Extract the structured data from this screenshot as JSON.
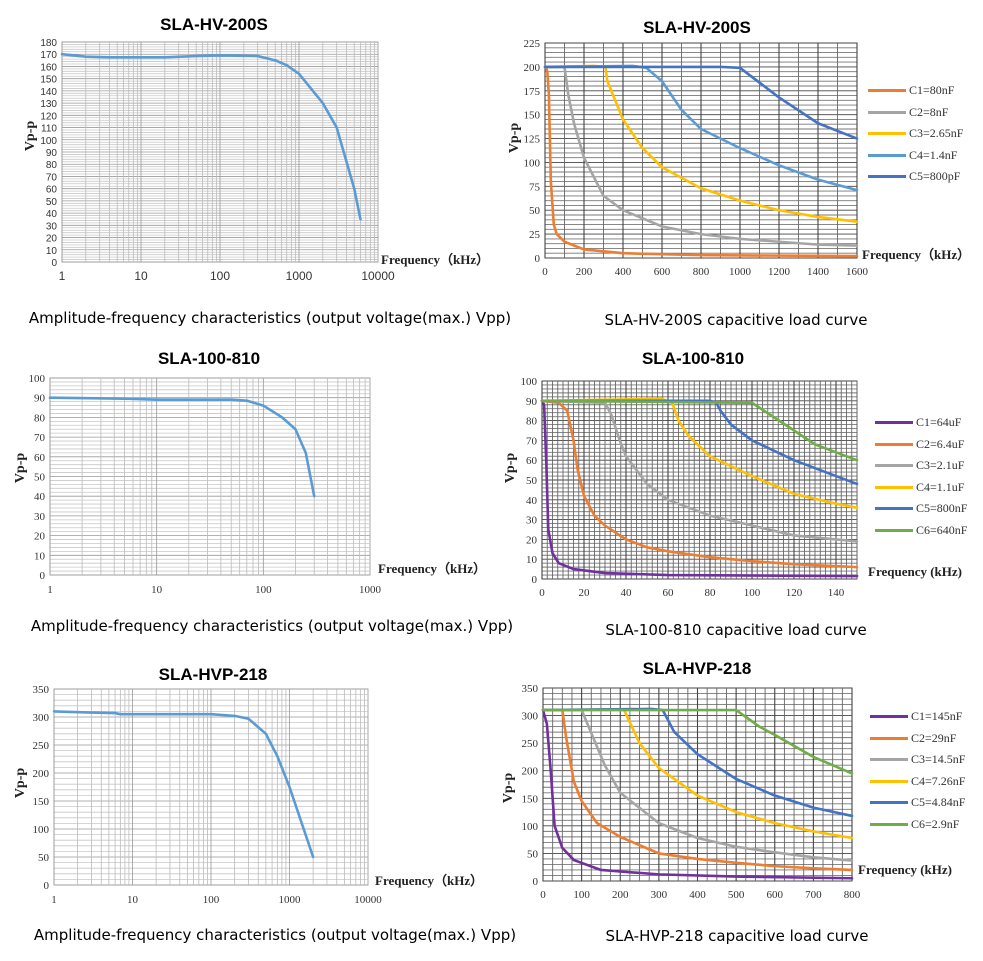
{
  "chart_data": [
    {
      "type": "line",
      "title": "SLA-HV-200S",
      "caption": "Amplitude-frequency characteristics (output voltage(max.) Vpp)",
      "xlabel": "Frequency（kHz）",
      "ylabel": "Vp-p",
      "xscale": "log",
      "xlim": [
        1,
        10000
      ],
      "ylim": [
        0,
        180
      ],
      "xticks": [
        "1",
        "10",
        "100",
        "1000",
        "10000"
      ],
      "yticks": [
        "0",
        "10",
        "20",
        "30",
        "40",
        "50",
        "60",
        "70",
        "80",
        "90",
        "100",
        "110",
        "120",
        "130",
        "140",
        "150",
        "160",
        "170",
        "180"
      ],
      "grid": true,
      "series": [
        {
          "color": "#5b9bd5",
          "x": [
            1,
            2,
            4,
            10,
            20,
            50,
            100,
            300,
            500,
            700,
            1000,
            2000,
            3000,
            5000,
            6000
          ],
          "y": [
            170,
            168,
            167.5,
            167.5,
            167.5,
            168.5,
            169,
            168.5,
            165,
            161,
            154,
            130,
            110,
            60,
            35
          ]
        }
      ]
    },
    {
      "type": "line",
      "title": "SLA-HV-200S",
      "caption": "SLA-HV-200S capacitive load curve",
      "xlabel": "Frequency（kHz）",
      "ylabel": "Vp-p",
      "xscale": "linear",
      "xlim": [
        0,
        1600
      ],
      "ylim": [
        0,
        225
      ],
      "xticks": [
        "0",
        "200",
        "400",
        "600",
        "800",
        "1000",
        "1200",
        "1400",
        "1600"
      ],
      "yticks": [
        "0",
        "25",
        "50",
        "75",
        "100",
        "125",
        "150",
        "175",
        "200",
        "225"
      ],
      "grid": true,
      "legend": "right",
      "series": [
        {
          "name": "C1=80nF",
          "color": "#ed7d31",
          "x": [
            5,
            12,
            20,
            30,
            45,
            60,
            100,
            200,
            400,
            800,
            1600
          ],
          "y": [
            200,
            195,
            170,
            80,
            35,
            25,
            17,
            9,
            5,
            3,
            2
          ]
        },
        {
          "name": "C2=8nF",
          "color": "#a5a5a5",
          "x": [
            0,
            100,
            120,
            150,
            200,
            300,
            400,
            600,
            800,
            1000,
            1200,
            1400,
            1600
          ],
          "y": [
            200,
            200,
            170,
            140,
            105,
            65,
            50,
            33,
            25,
            20,
            17,
            14,
            13
          ]
        },
        {
          "name": "C3=2.65nF",
          "color": "#ffc000",
          "x": [
            0,
            250,
            310,
            320,
            400,
            500,
            600,
            800,
            1000,
            1200,
            1400,
            1600
          ],
          "y": [
            200,
            201,
            200,
            185,
            145,
            115,
            95,
            73,
            60,
            50,
            43,
            38
          ]
        },
        {
          "name": "C4=1.4nF",
          "color": "#5b9bd5",
          "x": [
            0,
            450,
            520,
            600,
            700,
            800,
            1000,
            1200,
            1400,
            1600
          ],
          "y": [
            200,
            201,
            199,
            185,
            155,
            135,
            115,
            97,
            82,
            71
          ]
        },
        {
          "name": "C5=800pF",
          "color": "#4472c4",
          "x": [
            0,
            900,
            1000,
            1200,
            1400,
            1600
          ],
          "y": [
            200,
            200,
            199,
            168,
            141,
            125
          ]
        }
      ]
    },
    {
      "type": "line",
      "title": "SLA-100-810",
      "caption": "Amplitude-frequency characteristics (output voltage(max.) Vpp)",
      "xlabel": "Frequency（kHz）",
      "ylabel": "Vp-p",
      "xscale": "log",
      "xlim": [
        1,
        1000
      ],
      "ylim": [
        0,
        100
      ],
      "xticks": [
        "1",
        "10",
        "100",
        "1000"
      ],
      "yticks": [
        "0",
        "10",
        "20",
        "30",
        "40",
        "50",
        "60",
        "70",
        "80",
        "90",
        "100"
      ],
      "grid": true,
      "series": [
        {
          "color": "#5b9bd5",
          "x": [
            1,
            5,
            10,
            50,
            70,
            100,
            150,
            200,
            250,
            300
          ],
          "y": [
            90,
            89.5,
            89,
            89,
            88.5,
            86,
            80,
            74,
            62,
            40
          ]
        }
      ]
    },
    {
      "type": "line",
      "title": "SLA-100-810",
      "caption": "SLA-100-810 capacitive load curve",
      "xlabel": "Frequency (kHz)",
      "ylabel": "Vp-p",
      "xscale": "linear",
      "xlim": [
        0,
        150
      ],
      "ylim": [
        0,
        100
      ],
      "xticks": [
        "0",
        "20",
        "40",
        "60",
        "80",
        "100",
        "120",
        "140"
      ],
      "yticks": [
        "0",
        "10",
        "20",
        "30",
        "40",
        "50",
        "60",
        "70",
        "80",
        "90",
        "100"
      ],
      "grid": true,
      "legend": "right",
      "series": [
        {
          "name": "C1=64uF",
          "color": "#7030a0",
          "x": [
            0,
            1,
            2,
            3,
            5,
            8,
            15,
            30,
            60,
            150
          ],
          "y": [
            90,
            88,
            60,
            25,
            13,
            8,
            5,
            3,
            2,
            1.5
          ]
        },
        {
          "name": "C2=6.4uF",
          "color": "#ed7d31",
          "x": [
            0,
            8,
            12,
            15,
            17,
            20,
            25,
            30,
            40,
            50,
            60,
            80,
            100,
            120,
            150
          ],
          "y": [
            90,
            89,
            85,
            70,
            55,
            42,
            32,
            27,
            20,
            16,
            14,
            11,
            9,
            7.5,
            6
          ]
        },
        {
          "name": "C3=2.1uF",
          "color": "#a5a5a5",
          "x": [
            0,
            30,
            33,
            37,
            40,
            50,
            60,
            80,
            100,
            120,
            150
          ],
          "y": [
            90,
            89,
            83,
            70,
            62,
            48,
            40,
            32,
            27,
            22,
            19
          ]
        },
        {
          "name": "C4=1.1uF",
          "color": "#ffc000",
          "x": [
            0,
            57,
            62,
            65,
            70,
            80,
            100,
            120,
            140,
            150
          ],
          "y": [
            90,
            91,
            89,
            80,
            72,
            62,
            52,
            43,
            38,
            36
          ]
        },
        {
          "name": "C5=800nF",
          "color": "#4472c4",
          "x": [
            0,
            80,
            83,
            85,
            90,
            100,
            120,
            140,
            150
          ],
          "y": [
            90,
            90,
            89,
            85,
            78,
            70,
            60,
            52,
            48
          ]
        },
        {
          "name": "C6=640nF",
          "color": "#70ad47",
          "x": [
            0,
            100,
            110,
            120,
            130,
            140,
            150
          ],
          "y": [
            90,
            89,
            82,
            75,
            68,
            64,
            60
          ]
        }
      ]
    },
    {
      "type": "line",
      "title": "SLA-HVP-218",
      "caption": "Amplitude-frequency characteristics (output voltage(max.) Vpp)",
      "xlabel": "Frequency（kHz）",
      "ylabel": "Vp-p",
      "xscale": "log",
      "xlim": [
        1,
        10000
      ],
      "ylim": [
        0,
        350
      ],
      "xticks": [
        "1",
        "10",
        "100",
        "1000",
        "10000"
      ],
      "yticks": [
        "0",
        "50",
        "100",
        "150",
        "200",
        "250",
        "300",
        "350"
      ],
      "grid": true,
      "series": [
        {
          "color": "#5b9bd5",
          "x": [
            1,
            3,
            6,
            7,
            100,
            200,
            300,
            500,
            700,
            1000,
            2000
          ],
          "y": [
            310,
            308,
            307,
            305,
            305,
            302,
            297,
            270,
            230,
            175,
            50
          ]
        }
      ]
    },
    {
      "type": "line",
      "title": "SLA-HVP-218",
      "caption": "SLA-HVP-218 capacitive load curve",
      "xlabel": "Frequency  (kHz)",
      "ylabel": "Vp-p",
      "xscale": "linear",
      "xlim": [
        0,
        800
      ],
      "ylim": [
        0,
        350
      ],
      "xticks": [
        "0",
        "100",
        "200",
        "300",
        "400",
        "500",
        "600",
        "700",
        "800"
      ],
      "yticks": [
        "0",
        "50",
        "100",
        "150",
        "200",
        "250",
        "300",
        "350"
      ],
      "grid": true,
      "legend": "right",
      "series": [
        {
          "name": "C1=145nF",
          "color": "#7030a0",
          "x": [
            0,
            10,
            20,
            30,
            50,
            80,
            150,
            300,
            500,
            800
          ],
          "y": [
            310,
            285,
            200,
            100,
            60,
            38,
            20,
            12,
            8,
            5
          ]
        },
        {
          "name": "C2=29nF",
          "color": "#ed7d31",
          "x": [
            0,
            50,
            60,
            80,
            100,
            140,
            200,
            300,
            400,
            500,
            600,
            700,
            800
          ],
          "y": [
            310,
            310,
            260,
            180,
            145,
            105,
            80,
            50,
            40,
            33,
            27,
            23,
            20
          ]
        },
        {
          "name": "C3=14.5nF",
          "color": "#a5a5a5",
          "x": [
            0,
            100,
            130,
            160,
            200,
            300,
            400,
            500,
            600,
            700,
            800
          ],
          "y": [
            310,
            310,
            260,
            210,
            160,
            105,
            78,
            62,
            52,
            43,
            37
          ]
        },
        {
          "name": "C4=7.26nF",
          "color": "#ffc000",
          "x": [
            0,
            180,
            210,
            250,
            300,
            400,
            500,
            600,
            700,
            800
          ],
          "y": [
            310,
            311,
            310,
            250,
            205,
            155,
            125,
            105,
            90,
            78
          ]
        },
        {
          "name": "C5=4.84nF",
          "color": "#4472c4",
          "x": [
            0,
            280,
            310,
            340,
            400,
            500,
            600,
            700,
            800
          ],
          "y": [
            310,
            312,
            310,
            270,
            230,
            185,
            155,
            133,
            118
          ]
        },
        {
          "name": "C6=2.9nF",
          "color": "#70ad47",
          "x": [
            0,
            500,
            560,
            600,
            700,
            800
          ],
          "y": [
            310,
            310,
            280,
            265,
            225,
            195
          ]
        }
      ]
    }
  ]
}
